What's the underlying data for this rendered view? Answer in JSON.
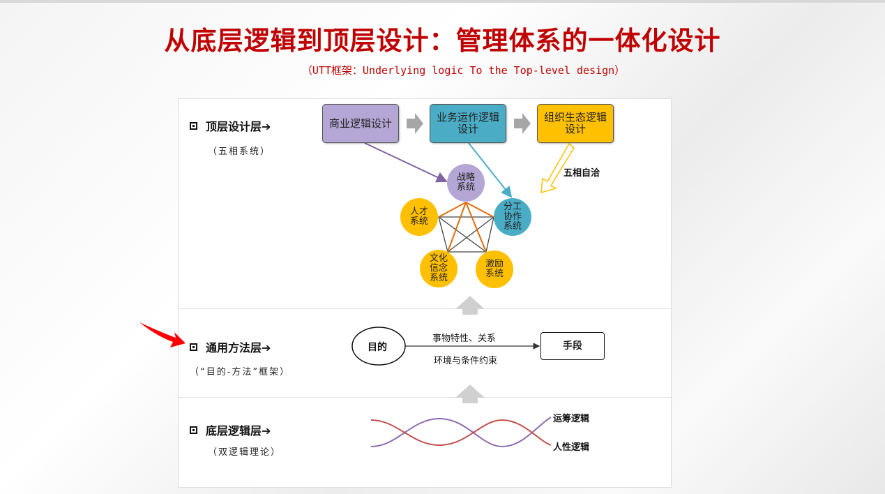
{
  "title": "从底层逻辑到顶层设计：管理体系的一体化设计",
  "subtitle": "（UTT框架：Underlying logic To the Top-level design）",
  "layers": {
    "top": {
      "label": "顶层设计层➔",
      "sub": "（五相系统）"
    },
    "middle": {
      "label": "通用方法层➔",
      "sub": "（“目的-方法”框架）"
    },
    "bottom": {
      "label": "底层逻辑层➔",
      "sub": "（双逻辑理论）"
    }
  },
  "top_design": {
    "boxes": [
      {
        "label": "商业逻辑设计",
        "color": "#b4a7d6"
      },
      {
        "label": "业务运作逻辑设计",
        "color": "#4bacc6"
      },
      {
        "label": "组织生态逻辑设计",
        "color": "#ffc000"
      }
    ],
    "coherence_label": "五相自洽",
    "systems": [
      {
        "label": "战略\n系统",
        "color": "#b4a7d6"
      },
      {
        "label": "人才\n系统",
        "color": "#ffc000"
      },
      {
        "label": "分工\n协作\n系统",
        "color": "#4bacc6"
      },
      {
        "label": "文化\n信念\n系统",
        "color": "#ffc000"
      },
      {
        "label": "激励\n系统",
        "color": "#ffc000"
      }
    ]
  },
  "method": {
    "goal": "目的",
    "means": "手段",
    "above_arrow": "事物特性、关系",
    "below_arrow": "环境与条件约束"
  },
  "logic": {
    "line1": "运筹逻辑",
    "line2": "人性逻辑",
    "color1": "#8e6bb0",
    "color2": "#c0504d"
  },
  "colors": {
    "title": "#c00000",
    "pointer_arrow": "#ff0000"
  }
}
